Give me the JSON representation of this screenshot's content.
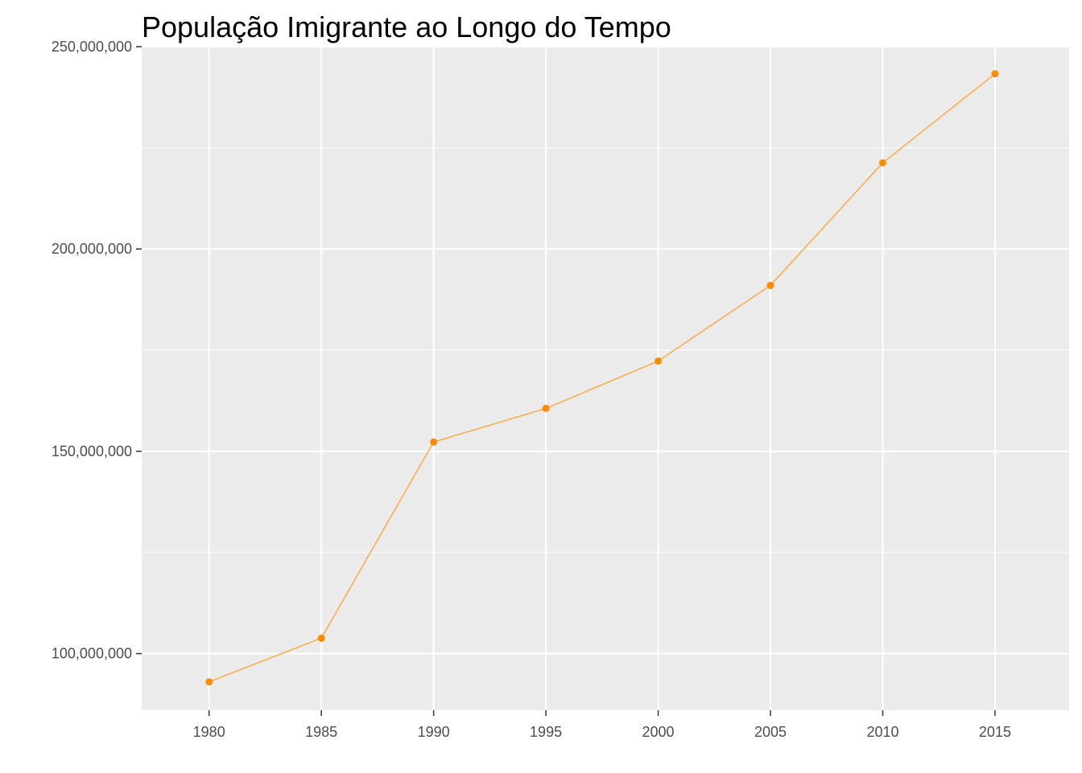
{
  "chart_data": {
    "type": "line",
    "title": "População Imigrante ao Longo do Tempo",
    "xlabel": "",
    "ylabel": "",
    "x": [
      1980,
      1985,
      1990,
      1995,
      2000,
      2005,
      2010,
      2015
    ],
    "series": [
      {
        "values": [
          93000000,
          103800000,
          152300000,
          160600000,
          172300000,
          191000000,
          221300000,
          243300000
        ],
        "color": "#FF8C00"
      }
    ],
    "xlim": [
      1977,
      2018.3
    ],
    "ylim": [
      86000000,
      250000000
    ],
    "x_ticks": [
      "1980",
      "1985",
      "1990",
      "1995",
      "2000",
      "2005",
      "2010",
      "2015"
    ],
    "y_ticks": [
      "100,000,000",
      "150,000,000",
      "200,000,000",
      "250,000,000"
    ],
    "y_tick_values": [
      100000000,
      150000000,
      200000000,
      250000000
    ],
    "y_minor_values": [
      125000000,
      175000000,
      225000000
    ],
    "grid": true,
    "panel_background": "#EBEBEB",
    "grid_color": "#FFFFFF",
    "line_color": "#FFA940",
    "point_color": "#FF8C00"
  }
}
